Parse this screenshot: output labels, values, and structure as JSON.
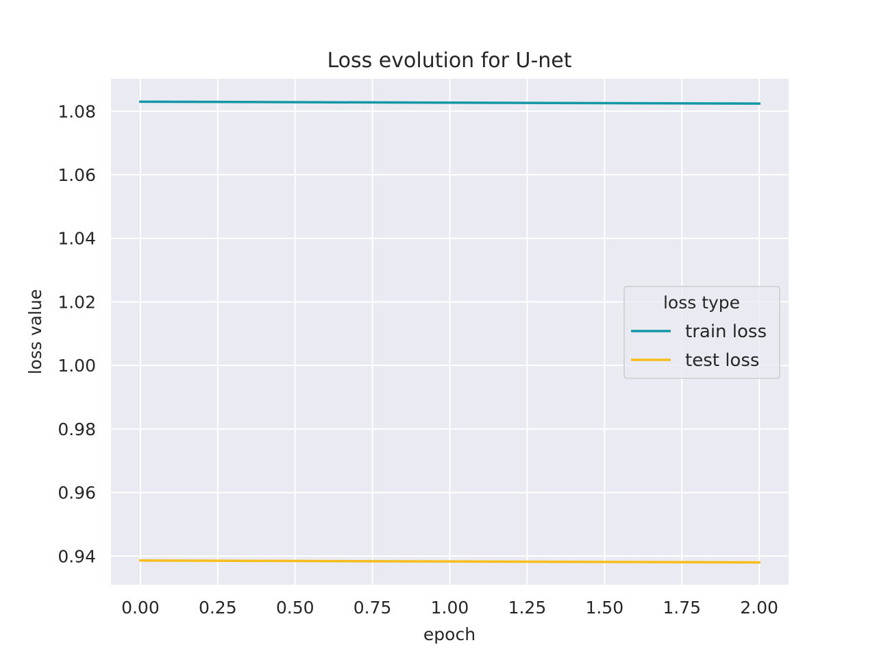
{
  "chart_data": {
    "type": "line",
    "title": "Loss evolution for U-net",
    "xlabel": "epoch",
    "ylabel": "loss value",
    "x": [
      0,
      1,
      2
    ],
    "series": [
      {
        "name": "train loss",
        "values": [
          1.083,
          1.0827,
          1.0824
        ],
        "color": "#1497a4"
      },
      {
        "name": "test loss",
        "values": [
          0.9386,
          0.9383,
          0.938
        ],
        "color": "#f6bd1b"
      }
    ],
    "xlim": [
      -0.095,
      2.095
    ],
    "ylim": [
      0.931,
      1.0902
    ],
    "xticks": [
      0,
      0.25,
      0.5,
      0.75,
      1,
      1.25,
      1.5,
      1.75,
      2
    ],
    "xtick_labels": [
      "0.00",
      "0.25",
      "0.50",
      "0.75",
      "1.00",
      "1.25",
      "1.50",
      "1.75",
      "2.00"
    ],
    "yticks": [
      0.94,
      0.96,
      0.98,
      1.0,
      1.02,
      1.04,
      1.06,
      1.08
    ],
    "ytick_labels": [
      "0.94",
      "0.96",
      "0.98",
      "1.00",
      "1.02",
      "1.04",
      "1.06",
      "1.08"
    ],
    "legend": {
      "title": "loss type",
      "placement": "center-right"
    },
    "grid": true,
    "background_color": "#eaeaf2",
    "grid_color": "#ffffff"
  }
}
